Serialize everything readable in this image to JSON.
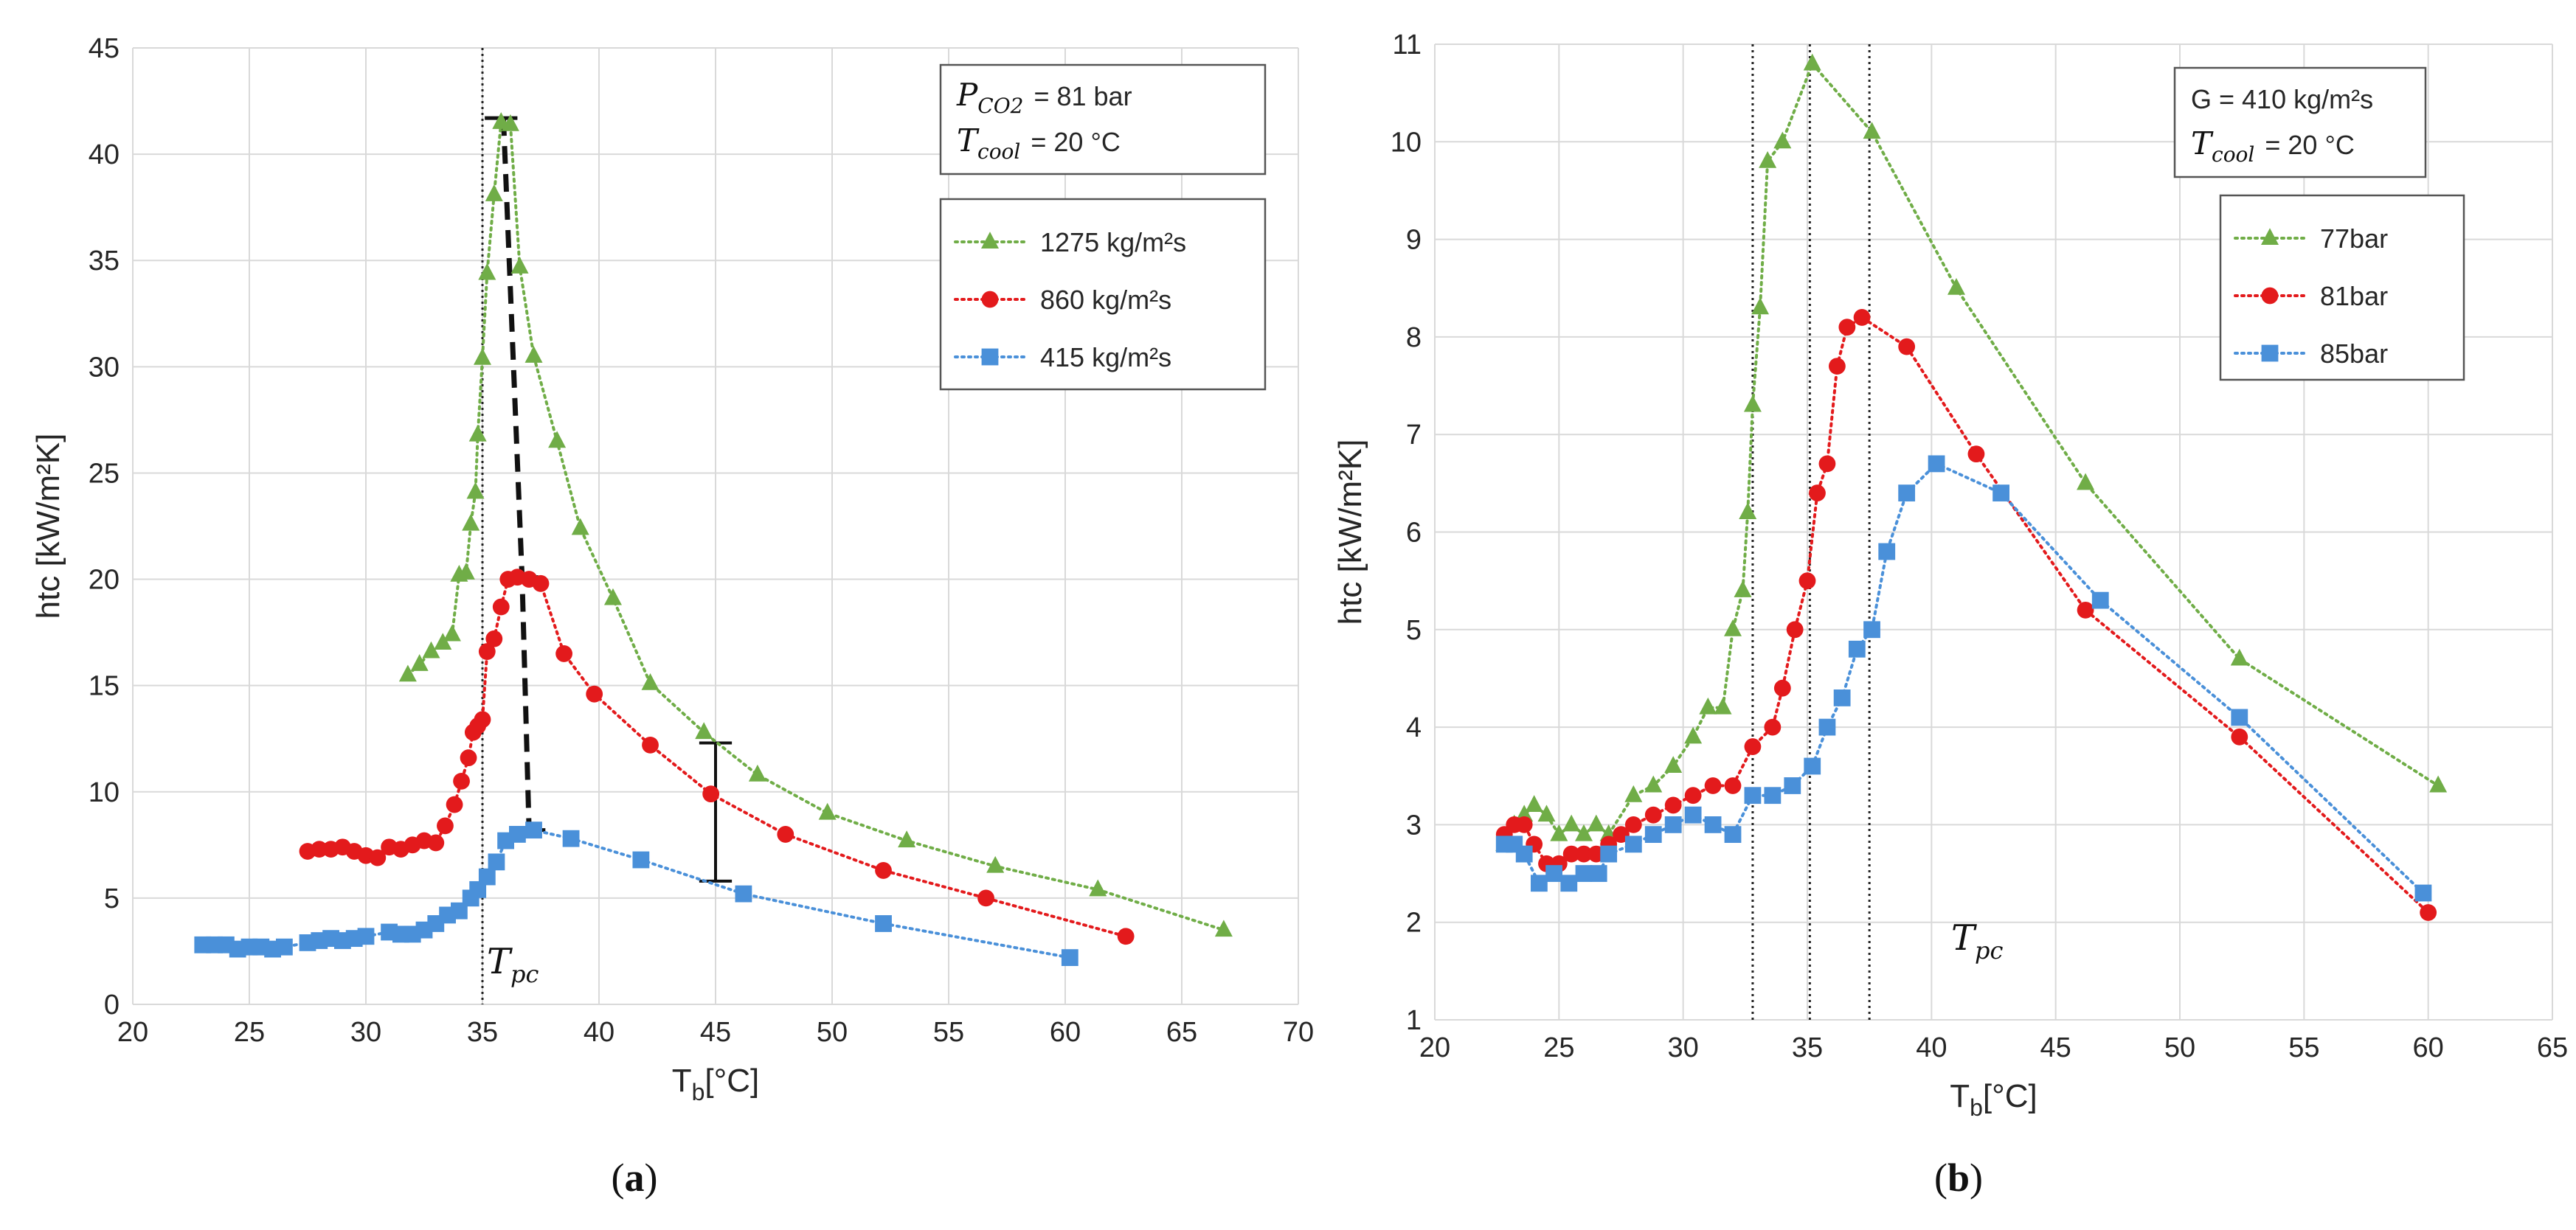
{
  "chart_data": [
    {
      "type": "scatter",
      "panel_label": "a",
      "ylabel": "htc [kW/m²K]",
      "xlabel_main": "T",
      "xlabel_sub": "b",
      "xlabel_unit": "[°C]",
      "xlim": [
        20,
        70
      ],
      "ylim": [
        0,
        45
      ],
      "xticks": [
        20,
        25,
        30,
        35,
        40,
        45,
        50,
        55,
        60,
        65,
        70
      ],
      "yticks": [
        0,
        5,
        10,
        15,
        20,
        25,
        30,
        35,
        40,
        45
      ],
      "info_lines": [
        {
          "sym": "P",
          "sub": "CO2",
          "value": "=  81 bar"
        },
        {
          "sym": "T",
          "sub": "cool",
          "value": "=  20 °C"
        }
      ],
      "tpc_label": {
        "sym": "T",
        "sub": "pc"
      },
      "vlines": [
        35
      ],
      "series": [
        {
          "name": "1275 kg/m²s",
          "color": "#70ad47",
          "marker": "triangle",
          "x": [
            31.8,
            32.3,
            32.8,
            33.3,
            33.7,
            34.0,
            34.3,
            34.5,
            34.7,
            34.8,
            35.0,
            35.2,
            35.5,
            35.8,
            36.2,
            36.6,
            37.2,
            38.2,
            39.2,
            40.6,
            42.2,
            44.5,
            46.8,
            49.8,
            53.2,
            57.0,
            61.4,
            66.8
          ],
          "y": [
            15.5,
            16.0,
            16.6,
            17.0,
            17.4,
            20.2,
            20.3,
            22.6,
            24.1,
            26.8,
            30.4,
            34.4,
            38.1,
            41.5,
            41.4,
            34.7,
            30.5,
            26.5,
            22.4,
            19.1,
            15.1,
            12.8,
            10.8,
            9.0,
            7.7,
            6.5,
            5.4,
            3.5
          ]
        },
        {
          "name": "860 kg/m²s",
          "color": "#e31a1c",
          "marker": "circle",
          "x": [
            27.5,
            28.0,
            28.5,
            29.0,
            29.5,
            30.0,
            30.5,
            31.0,
            31.5,
            32.0,
            32.5,
            33.0,
            33.4,
            33.8,
            34.1,
            34.4,
            34.6,
            34.8,
            35.0,
            35.2,
            35.5,
            35.8,
            36.1,
            36.5,
            37.0,
            37.5,
            38.5,
            39.8,
            42.2,
            44.8,
            48.0,
            52.2,
            56.6,
            62.6
          ],
          "y": [
            7.2,
            7.3,
            7.3,
            7.4,
            7.2,
            7.0,
            6.9,
            7.4,
            7.3,
            7.5,
            7.7,
            7.6,
            8.4,
            9.4,
            10.5,
            11.6,
            12.8,
            13.1,
            13.4,
            16.6,
            17.2,
            18.7,
            20.0,
            20.1,
            20.0,
            19.8,
            16.5,
            14.6,
            12.2,
            9.9,
            8.0,
            6.3,
            5.0,
            3.2
          ]
        },
        {
          "name": "415 kg/m²s",
          "color": "#4a90d9",
          "marker": "square",
          "x": [
            23.0,
            23.5,
            24.0,
            24.5,
            25.0,
            25.5,
            26.0,
            26.5,
            27.5,
            28.0,
            28.5,
            29.0,
            29.5,
            30.0,
            31.0,
            31.5,
            32.0,
            32.5,
            33.0,
            33.5,
            34.0,
            34.5,
            34.8,
            35.2,
            35.6,
            36.0,
            36.5,
            37.2,
            38.8,
            41.8,
            46.2,
            52.2,
            60.2
          ],
          "y": [
            2.8,
            2.8,
            2.8,
            2.6,
            2.7,
            2.7,
            2.6,
            2.7,
            2.9,
            3.0,
            3.1,
            3.0,
            3.1,
            3.2,
            3.4,
            3.3,
            3.3,
            3.5,
            3.8,
            4.2,
            4.4,
            5.0,
            5.4,
            6.0,
            6.7,
            7.7,
            8.0,
            8.2,
            7.8,
            6.8,
            5.2,
            3.8,
            2.2
          ]
        }
      ]
    },
    {
      "type": "scatter",
      "panel_label": "b",
      "ylabel": "htc [kW/m²K]",
      "xlabel_main": "T",
      "xlabel_sub": "b",
      "xlabel_unit": "[°C]",
      "xlim": [
        20,
        65
      ],
      "ylim": [
        1,
        11
      ],
      "xticks": [
        20,
        25,
        30,
        35,
        40,
        45,
        50,
        55,
        60,
        65
      ],
      "yticks": [
        1,
        2,
        3,
        4,
        5,
        6,
        7,
        8,
        9,
        10,
        11
      ],
      "info_lines": [
        {
          "text": "G = 410 kg/m²s"
        },
        {
          "sym": "T",
          "sub": "cool",
          "value": "= 20 °C"
        }
      ],
      "tpc_label": {
        "sym": "T",
        "sub": "pc"
      },
      "vlines": [
        32.8,
        35.1,
        37.5
      ],
      "series": [
        {
          "name": "77bar",
          "color": "#70ad47",
          "marker": "triangle",
          "x": [
            22.8,
            23.2,
            23.6,
            24.0,
            24.5,
            25.0,
            25.5,
            26.0,
            26.5,
            27.0,
            28.0,
            28.8,
            29.6,
            30.4,
            31.0,
            31.6,
            32.0,
            32.4,
            32.6,
            32.8,
            33.1,
            33.4,
            34.0,
            35.2,
            37.6,
            41.0,
            46.2,
            52.4,
            60.4
          ],
          "y": [
            2.8,
            3.0,
            3.1,
            3.2,
            3.1,
            2.9,
            3.0,
            2.9,
            3.0,
            2.9,
            3.3,
            3.4,
            3.6,
            3.9,
            4.2,
            4.2,
            5.0,
            5.4,
            6.2,
            7.3,
            8.3,
            9.8,
            10.0,
            10.8,
            10.1,
            8.5,
            6.5,
            4.7,
            3.4
          ]
        },
        {
          "name": "81bar",
          "color": "#e31a1c",
          "marker": "circle",
          "x": [
            22.8,
            23.2,
            23.6,
            24.0,
            24.5,
            25.0,
            25.5,
            26.0,
            26.5,
            27.0,
            27.5,
            28.0,
            28.8,
            29.6,
            30.4,
            31.2,
            32.0,
            32.8,
            33.6,
            34.0,
            34.5,
            35.0,
            35.4,
            35.8,
            36.2,
            36.6,
            37.2,
            39.0,
            41.8,
            46.2,
            52.4,
            60.0
          ],
          "y": [
            2.9,
            3.0,
            3.0,
            2.8,
            2.6,
            2.6,
            2.7,
            2.7,
            2.7,
            2.8,
            2.9,
            3.0,
            3.1,
            3.2,
            3.3,
            3.4,
            3.4,
            3.8,
            4.0,
            4.4,
            5.0,
            5.5,
            6.4,
            6.7,
            7.7,
            8.1,
            8.2,
            7.9,
            6.8,
            5.2,
            3.9,
            2.1
          ]
        },
        {
          "name": "85bar",
          "color": "#4a90d9",
          "marker": "square",
          "x": [
            22.8,
            23.2,
            23.6,
            24.2,
            24.8,
            25.4,
            26.0,
            26.6,
            27.0,
            28.0,
            28.8,
            29.6,
            30.4,
            31.2,
            32.0,
            32.8,
            33.6,
            34.4,
            35.2,
            35.8,
            36.4,
            37.0,
            37.6,
            38.2,
            39.0,
            40.2,
            42.8,
            46.8,
            52.4,
            59.8
          ],
          "y": [
            2.8,
            2.8,
            2.7,
            2.4,
            2.5,
            2.4,
            2.5,
            2.5,
            2.7,
            2.8,
            2.9,
            3.0,
            3.1,
            3.0,
            2.9,
            3.3,
            3.3,
            3.4,
            3.6,
            4.0,
            4.3,
            4.8,
            5.0,
            5.8,
            6.4,
            6.7,
            6.4,
            5.3,
            4.1,
            2.3
          ]
        }
      ]
    }
  ]
}
